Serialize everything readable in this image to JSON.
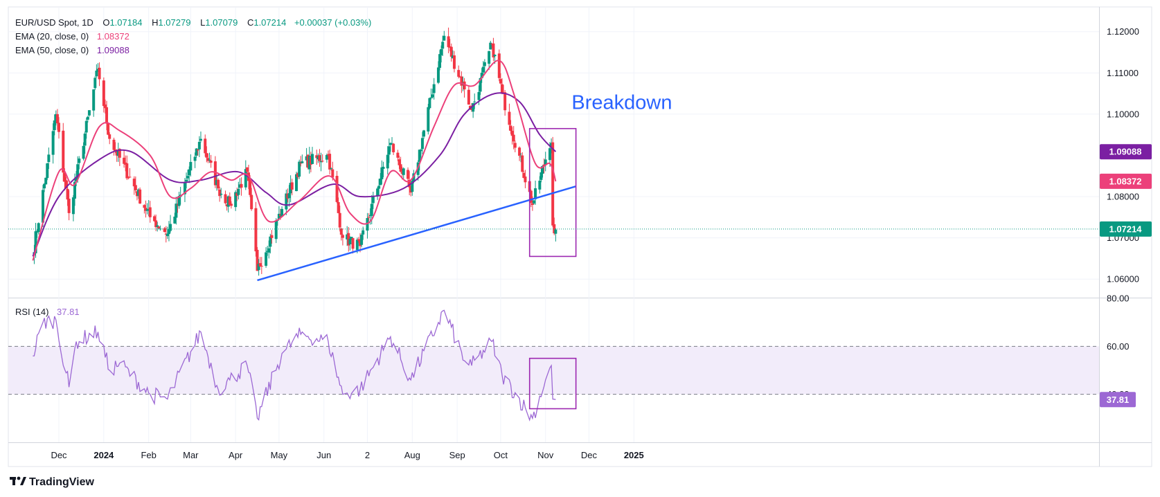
{
  "header": {
    "symbol": "EUR/USD Spot, 1D",
    "o_label": "O",
    "o_value": "1.07184",
    "h_label": "H",
    "h_value": "1.07279",
    "l_label": "L",
    "l_value": "1.07079",
    "c_label": "C",
    "c_value": "1.07214",
    "change": "+0.00037 (+0.03%)",
    "ema20_label": "EMA (20, close, 0)",
    "ema20_value": "1.08372",
    "ema50_label": "EMA (50, close, 0)",
    "ema50_value": "1.09088",
    "rsi_label": "RSI (14)",
    "rsi_value": "37.81"
  },
  "colors": {
    "up": "#089981",
    "down": "#f23645",
    "ema20": "#ec407a",
    "ema50": "#7b1fa2",
    "trendline": "#2962ff",
    "rsi_line": "#9c68d4",
    "rsi_band": "#f2ecfa",
    "box": "#9c27b0",
    "annotation": "#2962ff",
    "last_price": "#089981"
  },
  "annotation": {
    "text": "Breakdown"
  },
  "branding": {
    "name": "TradingView"
  },
  "chart_data": [
    {
      "type": "candlestick",
      "title": "EUR/USD Spot, 1D",
      "y_axis": {
        "ticks": [
          "1.12000",
          "1.11000",
          "1.10000",
          "1.08000",
          "1.07000",
          "1.06000"
        ],
        "range": [
          1.0555,
          1.126
        ]
      },
      "x_axis": {
        "ticks": [
          "Dec",
          "2024",
          "Feb",
          "Mar",
          "Apr",
          "May",
          "Jun",
          "2",
          "Aug",
          "Sep",
          "Oct",
          "Nov",
          "Dec",
          "2025"
        ]
      },
      "price_labels": {
        "ema50": "1.09088",
        "ema20": "1.08372",
        "last": "1.07214"
      },
      "key_points": [
        [
          "2023-11-13",
          1.066
        ],
        [
          "2023-11-29",
          1.1
        ],
        [
          "2023-12-08",
          1.076
        ],
        [
          "2023-12-28",
          1.111
        ],
        [
          "2024-01-05",
          1.094
        ],
        [
          "2024-02-02",
          1.075
        ],
        [
          "2024-02-14",
          1.071
        ],
        [
          "2024-03-08",
          1.094
        ],
        [
          "2024-03-20",
          1.082
        ],
        [
          "2024-03-28",
          1.078
        ],
        [
          "2024-04-09",
          1.086
        ],
        [
          "2024-04-16",
          1.062
        ],
        [
          "2024-05-03",
          1.077
        ],
        [
          "2024-05-16",
          1.088
        ],
        [
          "2024-06-04",
          1.09
        ],
        [
          "2024-06-14",
          1.07
        ],
        [
          "2024-06-26",
          1.068
        ],
        [
          "2024-07-17",
          1.093
        ],
        [
          "2024-07-31",
          1.081
        ],
        [
          "2024-08-23",
          1.119
        ],
        [
          "2024-09-06",
          1.106
        ],
        [
          "2024-09-11",
          1.101
        ],
        [
          "2024-09-25",
          1.117
        ],
        [
          "2024-10-02",
          1.105
        ],
        [
          "2024-10-23",
          1.078
        ],
        [
          "2024-11-01",
          1.089
        ],
        [
          "2024-11-05",
          1.093
        ],
        [
          "2024-11-06",
          1.073
        ],
        [
          "2024-11-08",
          1.072
        ]
      ],
      "ema20_points": [
        [
          "2023-11-13",
          1.0645
        ],
        [
          "2023-12-01",
          1.086
        ],
        [
          "2023-12-12",
          1.083
        ],
        [
          "2023-12-29",
          1.097
        ],
        [
          "2024-01-12",
          1.096
        ],
        [
          "2024-02-02",
          1.09
        ],
        [
          "2024-02-16",
          1.08
        ],
        [
          "2024-03-01",
          1.082
        ],
        [
          "2024-03-15",
          1.086
        ],
        [
          "2024-03-29",
          1.084
        ],
        [
          "2024-04-10",
          1.085
        ],
        [
          "2024-04-24",
          1.074
        ],
        [
          "2024-05-15",
          1.079
        ],
        [
          "2024-06-05",
          1.085
        ],
        [
          "2024-06-19",
          1.076
        ],
        [
          "2024-07-03",
          1.074
        ],
        [
          "2024-07-17",
          1.086
        ],
        [
          "2024-07-31",
          1.084
        ],
        [
          "2024-08-16",
          1.097
        ],
        [
          "2024-08-30",
          1.107
        ],
        [
          "2024-09-13",
          1.107
        ],
        [
          "2024-09-30",
          1.113
        ],
        [
          "2024-10-11",
          1.104
        ],
        [
          "2024-10-25",
          1.088
        ],
        [
          "2024-11-04",
          1.088
        ],
        [
          "2024-11-08",
          1.0837
        ]
      ],
      "ema50_points": [
        [
          "2023-11-13",
          1.0655
        ],
        [
          "2023-12-01",
          1.08
        ],
        [
          "2023-12-29",
          1.089
        ],
        [
          "2024-01-19",
          1.091
        ],
        [
          "2024-02-16",
          1.084
        ],
        [
          "2024-03-08",
          1.084
        ],
        [
          "2024-04-03",
          1.086
        ],
        [
          "2024-04-22",
          1.081
        ],
        [
          "2024-05-08",
          1.078
        ],
        [
          "2024-06-07",
          1.083
        ],
        [
          "2024-06-26",
          1.08
        ],
        [
          "2024-07-26",
          1.082
        ],
        [
          "2024-08-20",
          1.09
        ],
        [
          "2024-09-06",
          1.1
        ],
        [
          "2024-09-27",
          1.105
        ],
        [
          "2024-10-14",
          1.103
        ],
        [
          "2024-10-28",
          1.095
        ],
        [
          "2024-11-08",
          1.0909
        ]
      ],
      "trendline": {
        "from": [
          "2024-04-16",
          1.0597
        ],
        "to": [
          "2024-11-22",
          1.0825
        ]
      },
      "box": {
        "from": [
          "2024-10-21",
          1.0965
        ],
        "to": [
          "2024-11-22",
          1.0655
        ]
      },
      "annotation_position": [
        "2024-11-19",
        1.1012
      ]
    },
    {
      "type": "line",
      "title": "RSI (14)",
      "y_axis": {
        "ticks": [
          "80.00",
          "60.00",
          "40.00"
        ],
        "range": [
          20,
          80
        ]
      },
      "levels": [
        60,
        40
      ],
      "value_label": "37.81",
      "key_points": [
        [
          "2023-11-13",
          56
        ],
        [
          "2023-11-20",
          70
        ],
        [
          "2023-11-29",
          71
        ],
        [
          "2023-12-08",
          43
        ],
        [
          "2023-12-13",
          62
        ],
        [
          "2023-12-28",
          66
        ],
        [
          "2024-01-05",
          50
        ],
        [
          "2024-01-12",
          53
        ],
        [
          "2024-02-02",
          40
        ],
        [
          "2024-02-14",
          38
        ],
        [
          "2024-03-08",
          66
        ],
        [
          "2024-03-20",
          42
        ],
        [
          "2024-03-28",
          46
        ],
        [
          "2024-04-09",
          52
        ],
        [
          "2024-04-16",
          30
        ],
        [
          "2024-05-03",
          57
        ],
        [
          "2024-05-16",
          65
        ],
        [
          "2024-06-04",
          62
        ],
        [
          "2024-06-14",
          40
        ],
        [
          "2024-06-26",
          42
        ],
        [
          "2024-07-17",
          64
        ],
        [
          "2024-07-31",
          46
        ],
        [
          "2024-08-23",
          75
        ],
        [
          "2024-09-06",
          54
        ],
        [
          "2024-09-11",
          52
        ],
        [
          "2024-09-25",
          62
        ],
        [
          "2024-10-02",
          48
        ],
        [
          "2024-10-23",
          30
        ],
        [
          "2024-11-01",
          46
        ],
        [
          "2024-11-05",
          52
        ],
        [
          "2024-11-06",
          38
        ],
        [
          "2024-11-08",
          37.81
        ]
      ],
      "box": {
        "from": [
          "2024-10-21",
          55
        ],
        "to": [
          "2024-11-22",
          34
        ]
      }
    }
  ]
}
